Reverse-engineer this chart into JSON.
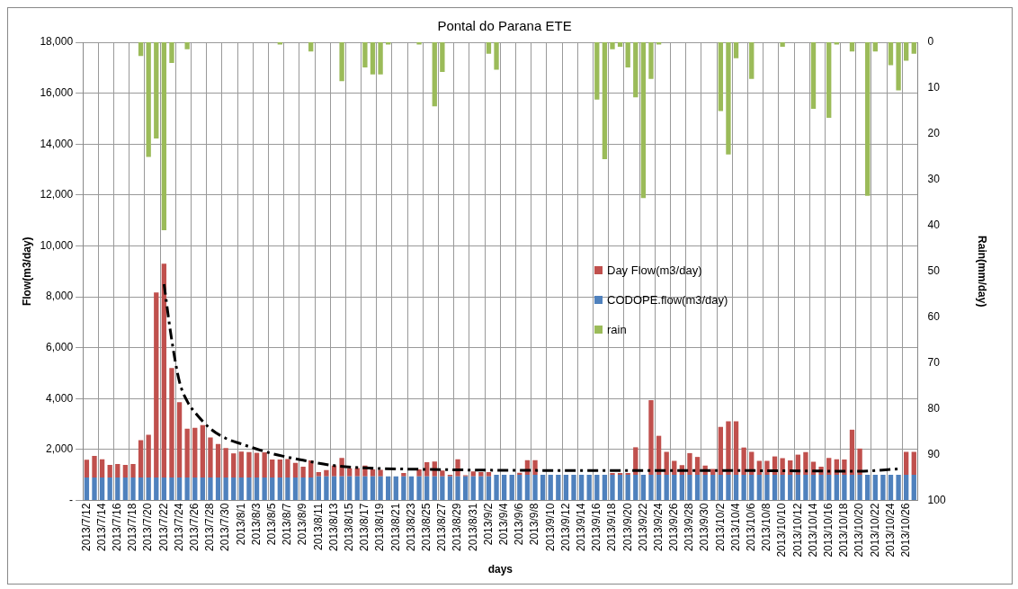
{
  "chart_data": {
    "type": "bar",
    "title": "Pontal do Parana ETE",
    "xlabel": "days",
    "ylabel": "Flow(m3/day)",
    "y2label": "Rain(mm/day)",
    "categories": [
      "2013/7/12",
      null,
      "2013/7/14",
      null,
      "2013/7/16",
      null,
      "2013/7/18",
      null,
      "2013/7/20",
      null,
      "2013/7/22",
      null,
      "2013/7/24",
      null,
      "2013/7/26",
      null,
      "2013/7/28",
      null,
      "2013/7/30",
      null,
      "2013/8/1",
      null,
      "2013/8/3",
      null,
      "2013/8/5",
      null,
      "2013/8/7",
      null,
      "2013/8/9",
      null,
      "2013/8/11",
      null,
      "2013/8/13",
      null,
      "2013/8/15",
      null,
      "2013/8/17",
      null,
      "2013/8/19",
      null,
      "2013/8/21",
      null,
      "2013/8/23",
      null,
      "2013/8/25",
      null,
      "2013/8/27",
      null,
      "2013/8/29",
      null,
      "2013/8/31",
      null,
      "2013/9/2",
      null,
      "2013/9/4",
      null,
      "2013/9/6",
      null,
      "2013/9/8",
      null,
      "2013/9/10",
      null,
      "2013/9/12",
      null,
      "2013/9/14",
      null,
      "2013/9/16",
      null,
      "2013/9/18",
      null,
      "2013/9/20",
      null,
      "2013/9/22",
      null,
      "2013/9/24",
      null,
      "2013/9/26",
      null,
      "2013/9/28",
      null,
      "2013/9/30",
      null,
      "2013/10/2",
      null,
      "2013/10/4",
      null,
      "2013/10/6",
      null,
      "2013/10/8",
      null,
      "2013/10/10",
      null,
      "2013/10/12",
      null,
      "2013/10/14",
      null,
      "2013/10/16",
      null,
      "2013/10/18",
      null,
      "2013/10/20",
      null,
      "2013/10/22",
      null,
      "2013/10/24",
      null,
      "2013/10/26",
      null
    ],
    "stacked": true,
    "grid": true,
    "legend": "right",
    "ylim": [
      0,
      18000
    ],
    "yticks": [
      {
        "value": 0,
        "label": "-"
      },
      {
        "value": 2000,
        "label": "2,000"
      },
      {
        "value": 4000,
        "label": "4,000"
      },
      {
        "value": 6000,
        "label": "6,000"
      },
      {
        "value": 8000,
        "label": "8,000"
      },
      {
        "value": 10000,
        "label": "10,000"
      },
      {
        "value": 12000,
        "label": "12,000"
      },
      {
        "value": 14000,
        "label": "14,000"
      },
      {
        "value": 16000,
        "label": "16,000"
      },
      {
        "value": 18000,
        "label": "18,000"
      }
    ],
    "y2lim": [
      100,
      0
    ],
    "y2ticks": [
      0,
      10,
      20,
      30,
      40,
      50,
      60,
      70,
      80,
      90,
      100
    ],
    "series": [
      {
        "name": "CODOPE.flow(m3/day)",
        "color": "#4f81bd",
        "values": [
          900,
          900,
          900,
          900,
          900,
          900,
          900,
          900,
          900,
          900,
          900,
          900,
          900,
          900,
          900,
          900,
          900,
          900,
          900,
          900,
          900,
          900,
          900,
          900,
          900,
          900,
          900,
          900,
          900,
          900,
          950,
          950,
          950,
          950,
          950,
          950,
          950,
          950,
          950,
          950,
          950,
          950,
          950,
          950,
          950,
          950,
          950,
          950,
          950,
          950,
          950,
          950,
          950,
          1010,
          1010,
          1010,
          1010,
          1010,
          1010,
          1010,
          1010,
          1010,
          1010,
          1010,
          1010,
          1010,
          1010,
          1010,
          1010,
          1010,
          1010,
          1010,
          1010,
          1010,
          1010,
          1010,
          1010,
          1010,
          1010,
          1010,
          1010,
          1010,
          1010,
          1010,
          1010,
          1010,
          1010,
          1010,
          1010,
          1010,
          1010,
          1010,
          1010,
          1010,
          1010,
          1010,
          1010,
          1010,
          1010,
          1010,
          1010,
          1010,
          1010,
          1010,
          1010,
          1010,
          1010,
          1010
        ]
      },
      {
        "name": "Day Flow(m3/day)",
        "color": "#c0504d",
        "values": [
          700,
          850,
          720,
          500,
          530,
          500,
          530,
          1470,
          1680,
          7270,
          8400,
          4300,
          2960,
          1920,
          1950,
          2060,
          1570,
          1320,
          1160,
          950,
          1020,
          1000,
          970,
          990,
          710,
          710,
          730,
          580,
          430,
          670,
          160,
          240,
          420,
          720,
          310,
          320,
          420,
          270,
          250,
          0,
          0,
          130,
          0,
          270,
          550,
          580,
          230,
          60,
          670,
          40,
          190,
          160,
          160,
          0,
          0,
          0,
          80,
          570,
          570,
          0,
          0,
          0,
          0,
          0,
          0,
          0,
          0,
          0,
          70,
          70,
          70,
          1080,
          0,
          2930,
          1530,
          900,
          550,
          380,
          850,
          700,
          360,
          230,
          1880,
          2100,
          2100,
          1070,
          900,
          550,
          550,
          720,
          650,
          560,
          790,
          890,
          510,
          320,
          660,
          610,
          600,
          1770,
          1030,
          0,
          0,
          0,
          0,
          0,
          900,
          900
        ]
      },
      {
        "name": "rain",
        "color": "#9bbb59",
        "axis": "y2",
        "values": [
          null,
          null,
          null,
          null,
          null,
          null,
          null,
          3,
          25,
          21,
          41,
          4.5,
          null,
          1.5,
          null,
          null,
          null,
          null,
          null,
          null,
          null,
          null,
          null,
          null,
          null,
          0.5,
          null,
          null,
          null,
          2,
          null,
          null,
          null,
          8.5,
          null,
          null,
          5.5,
          7,
          7,
          0.5,
          null,
          null,
          null,
          0.5,
          null,
          14,
          6.5,
          null,
          null,
          null,
          null,
          null,
          2.5,
          6,
          null,
          null,
          null,
          null,
          null,
          null,
          null,
          null,
          null,
          null,
          null,
          null,
          12.5,
          25.5,
          1.5,
          1,
          5.5,
          12,
          34,
          8,
          0.5,
          null,
          null,
          null,
          null,
          null,
          null,
          null,
          15,
          24.5,
          3.5,
          null,
          8,
          null,
          null,
          null,
          1,
          null,
          null,
          null,
          14.5,
          null,
          16.5,
          0.5,
          null,
          2,
          null,
          33.5,
          2,
          null,
          5,
          10.5,
          4,
          2.5
        ]
      },
      {
        "type": "line",
        "color": "#000000",
        "line_style": "dashed",
        "marker": "none",
        "values": [
          null,
          null,
          null,
          null,
          null,
          null,
          null,
          null,
          null,
          null,
          8500,
          6300,
          4660,
          3900,
          3460,
          null,
          2820,
          null,
          2440,
          null,
          2220,
          null,
          null,
          null,
          1840,
          null,
          null,
          null,
          1580,
          null,
          null,
          null,
          1370,
          null,
          null,
          null,
          1280,
          null,
          null,
          null,
          null,
          null,
          null,
          null,
          1220,
          null,
          null,
          null,
          null,
          null,
          null,
          null,
          null,
          null,
          null,
          null,
          null,
          null,
          null,
          null,
          1180,
          null,
          null,
          null,
          null,
          null,
          null,
          null,
          null,
          null,
          null,
          null,
          null,
          null,
          null,
          null,
          null,
          null,
          null,
          null,
          1180,
          null,
          null,
          null,
          null,
          null,
          null,
          null,
          null,
          null,
          null,
          null,
          null,
          null,
          null,
          null,
          null,
          null,
          null,
          null,
          1150,
          null,
          null,
          null,
          null,
          1240,
          null,
          null
        ]
      }
    ]
  }
}
